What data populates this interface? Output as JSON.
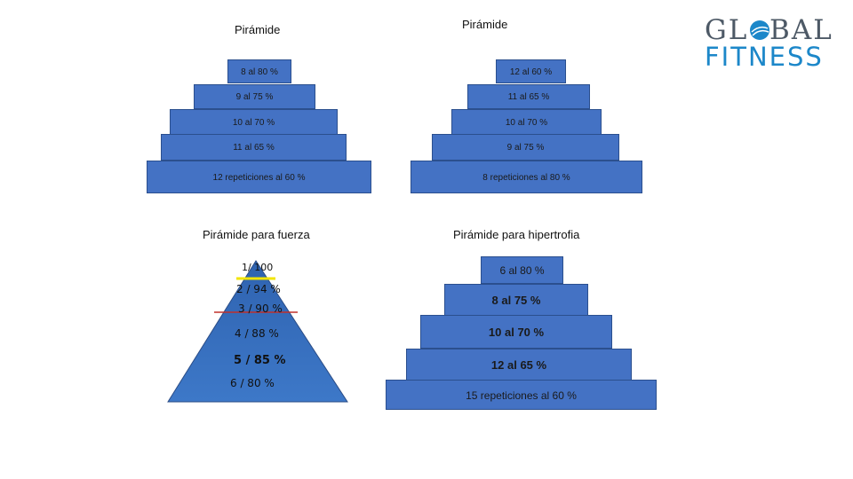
{
  "logo": {
    "top_text": "GL  BAL",
    "bottom_text": "FITNESS",
    "accent": "#1c87c9",
    "gray": "#4d5966"
  },
  "pyramid_1": {
    "title": "Pirámide",
    "steps": [
      "8 al 80 %",
      "9 al 75 %",
      "10 al 70 %",
      "11 al 65 %",
      "12 repeticiones al 60 %"
    ]
  },
  "pyramid_2": {
    "title": "Pirámide",
    "steps": [
      "12 al 60 %",
      "11 al 65 %",
      "10 al 70 %",
      "9 al 75 %",
      "8 repeticiones al 80 %"
    ]
  },
  "pyramid_fuerza": {
    "title": "Pirámide  para fuerza",
    "levels": [
      "1/  100",
      "2 / 94 %",
      "3 / 90 %",
      "4 / 88 %",
      "5 / 85 %",
      "6 / 80 %"
    ]
  },
  "pyramid_hipertrofia": {
    "title": "Pirámide para hipertrofia",
    "steps": [
      "6 al 80 %",
      "8 al 75 %",
      "10 al 70 %",
      "12 al 65 %",
      "15 repeticiones al 60 %"
    ]
  },
  "colors": {
    "step_fill": "#4472c4",
    "step_border": "#2b4f8e",
    "yellow_line": "#f2e500",
    "red_line": "#c0302a"
  }
}
